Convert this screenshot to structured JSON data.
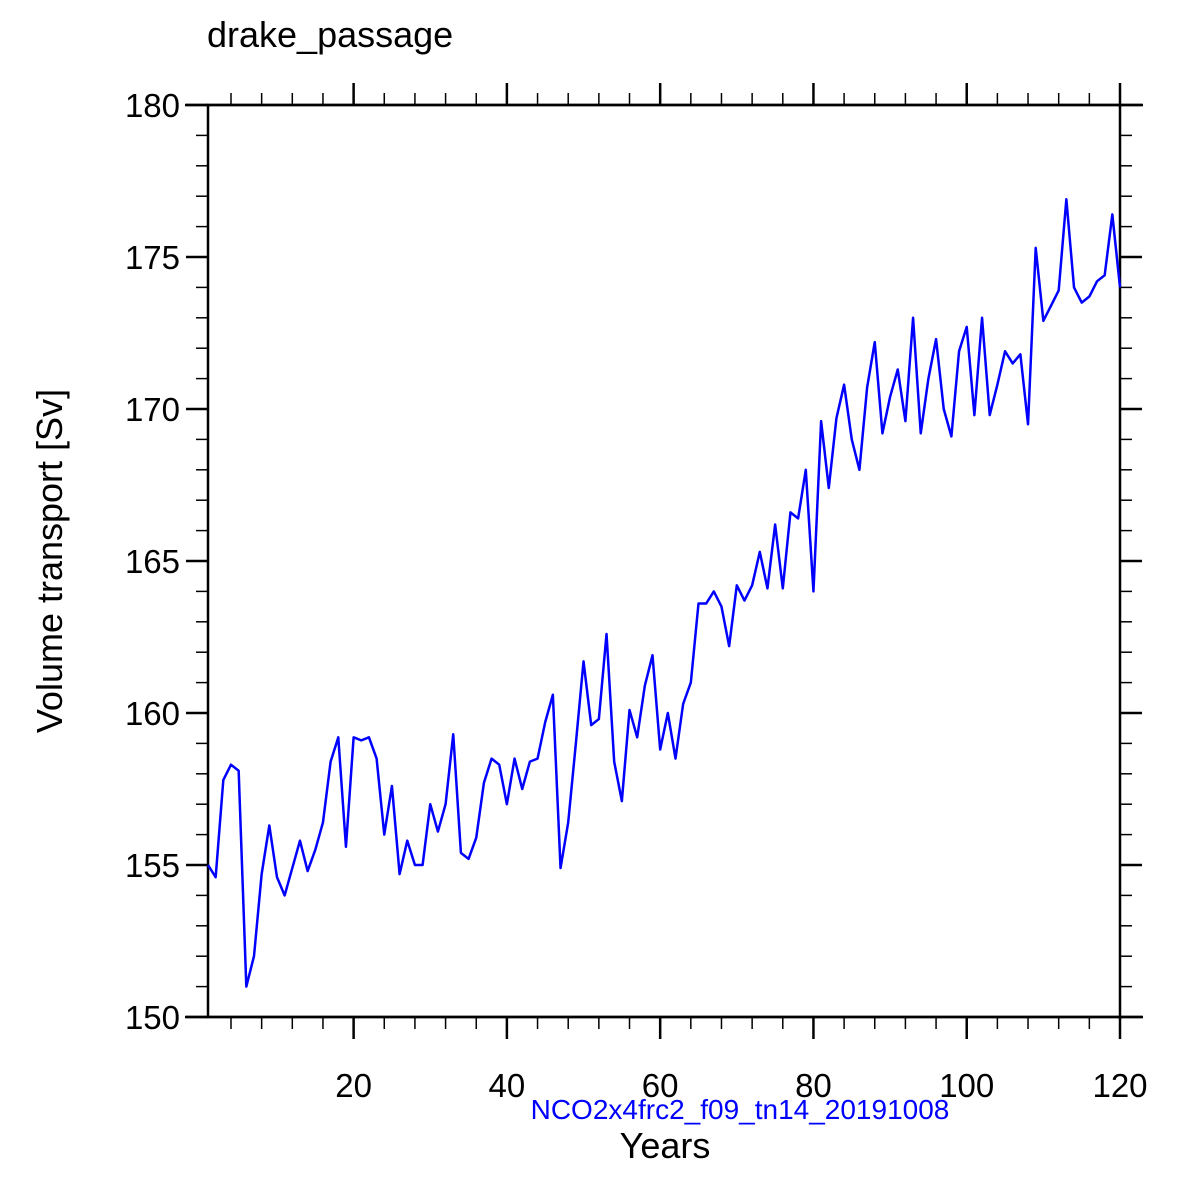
{
  "chart_data": {
    "type": "line",
    "title": "drake_passage",
    "xlabel": "Years",
    "ylabel": "Volume transport [Sv]",
    "annotation": "NCO2x4frc2_f09_tn14_20191008",
    "xlim": [
      1,
      120
    ],
    "ylim": [
      150,
      180
    ],
    "xticks": [
      20,
      40,
      60,
      80,
      100,
      120
    ],
    "yticks": [
      150,
      155,
      160,
      165,
      170,
      175,
      180
    ],
    "grid": false,
    "series": [
      {
        "name": "drake_passage",
        "color": "#0000ff",
        "x": [
          1,
          2,
          3,
          4,
          5,
          6,
          7,
          8,
          9,
          10,
          11,
          12,
          13,
          14,
          15,
          16,
          17,
          18,
          19,
          20,
          21,
          22,
          23,
          24,
          25,
          26,
          27,
          28,
          29,
          30,
          31,
          32,
          33,
          34,
          35,
          36,
          37,
          38,
          39,
          40,
          41,
          42,
          43,
          44,
          45,
          46,
          47,
          48,
          49,
          50,
          51,
          52,
          53,
          54,
          55,
          56,
          57,
          58,
          59,
          60,
          61,
          62,
          63,
          64,
          65,
          66,
          67,
          68,
          69,
          70,
          71,
          72,
          73,
          74,
          75,
          76,
          77,
          78,
          79,
          80,
          81,
          82,
          83,
          84,
          85,
          86,
          87,
          88,
          89,
          90,
          91,
          92,
          93,
          94,
          95,
          96,
          97,
          98,
          99,
          100,
          101,
          102,
          103,
          104,
          105,
          106,
          107,
          108,
          109,
          110,
          111,
          112,
          113,
          114,
          115,
          116,
          117,
          118,
          119,
          120
        ],
        "values": [
          155.0,
          154.6,
          157.8,
          158.3,
          158.1,
          151.0,
          152.0,
          154.7,
          156.3,
          154.6,
          154.0,
          154.9,
          155.8,
          154.8,
          155.5,
          156.4,
          158.4,
          159.2,
          155.6,
          159.2,
          159.1,
          159.2,
          158.5,
          156.0,
          157.6,
          154.7,
          155.8,
          155.0,
          155.0,
          157.0,
          156.1,
          157.0,
          159.3,
          155.4,
          155.2,
          155.9,
          157.7,
          158.5,
          158.3,
          157.0,
          158.5,
          157.5,
          158.4,
          158.5,
          159.7,
          160.6,
          154.9,
          156.4,
          159.0,
          161.7,
          159.6,
          159.8,
          162.6,
          158.4,
          157.1,
          160.1,
          159.2,
          160.9,
          161.9,
          158.8,
          160.0,
          158.5,
          160.3,
          161.0,
          163.6,
          163.6,
          164.0,
          163.5,
          162.2,
          164.2,
          163.7,
          164.2,
          165.3,
          164.1,
          166.2,
          164.1,
          166.6,
          166.4,
          168.0,
          164.0,
          169.6,
          167.4,
          169.7,
          170.8,
          169.0,
          168.0,
          170.7,
          172.2,
          169.2,
          170.4,
          171.3,
          169.6,
          173.0,
          169.2,
          171.0,
          172.3,
          170.0,
          169.1,
          171.9,
          172.7,
          169.8,
          173.0,
          169.8,
          170.8,
          171.9,
          171.5,
          171.8,
          169.5,
          175.3,
          172.9,
          173.4,
          173.9,
          176.9,
          174.0,
          173.5,
          173.7,
          174.2,
          174.4,
          176.4,
          174.0
        ]
      }
    ]
  }
}
